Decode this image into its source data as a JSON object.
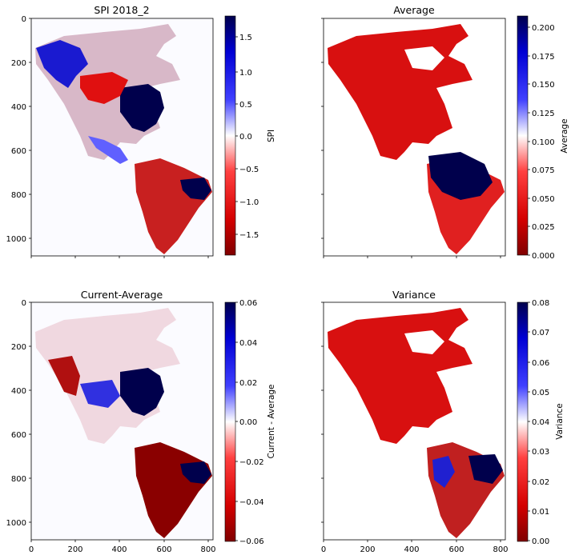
{
  "chart_data": [
    {
      "type": "heatmap",
      "title": "SPI 2018_2",
      "xlabel": "",
      "ylabel": "",
      "xlim": [
        0,
        820
      ],
      "ylim": [
        1080,
        0
      ],
      "xticks": [],
      "yticks": [
        0,
        200,
        400,
        600,
        800,
        1000
      ],
      "colormap": "seismic_r",
      "colorbar": {
        "label": "SPI",
        "range": [
          -1.85,
          1.85
        ],
        "ticks": [
          -1.5,
          -1.0,
          -0.5,
          0.0,
          0.5,
          1.0,
          1.5
        ],
        "tick_labels": [
          "−1.5",
          "−1.0",
          "−0.5",
          "0.0",
          "0.5",
          "1.0",
          "1.5"
        ]
      }
    },
    {
      "type": "heatmap",
      "title": "Average",
      "xlabel": "",
      "ylabel": "",
      "xlim": [
        0,
        820
      ],
      "ylim": [
        1080,
        0
      ],
      "xticks": [],
      "yticks": [],
      "colormap": "seismic_r",
      "colorbar": {
        "label": "Average",
        "range": [
          0.0,
          0.21
        ],
        "ticks": [
          0.0,
          0.025,
          0.05,
          0.075,
          0.1,
          0.125,
          0.15,
          0.175,
          0.2
        ],
        "tick_labels": [
          "0.000",
          "0.025",
          "0.050",
          "0.075",
          "0.100",
          "0.125",
          "0.150",
          "0.175",
          "0.200"
        ]
      }
    },
    {
      "type": "heatmap",
      "title": "Current-Average",
      "xlabel": "",
      "ylabel": "",
      "xlim": [
        0,
        820
      ],
      "ylim": [
        1080,
        0
      ],
      "xticks": [
        0,
        200,
        400,
        600,
        800
      ],
      "yticks": [
        0,
        200,
        400,
        600,
        800,
        1000
      ],
      "colormap": "seismic_r",
      "colorbar": {
        "label": "Current - Average",
        "range": [
          -0.06,
          0.06
        ],
        "ticks": [
          -0.06,
          -0.04,
          -0.02,
          0.0,
          0.02,
          0.04,
          0.06
        ],
        "tick_labels": [
          "−0.06",
          "−0.04",
          "−0.02",
          "0.00",
          "0.02",
          "0.04",
          "0.06"
        ]
      }
    },
    {
      "type": "heatmap",
      "title": "Variance",
      "xlabel": "",
      "ylabel": "",
      "xlim": [
        0,
        820
      ],
      "ylim": [
        1080,
        0
      ],
      "xticks": [
        0,
        200,
        400,
        600,
        800
      ],
      "yticks": [],
      "colormap": "seismic_r",
      "colorbar": {
        "label": "Variance",
        "range": [
          0.0,
          0.08
        ],
        "ticks": [
          0.0,
          0.01,
          0.02,
          0.03,
          0.04,
          0.05,
          0.06,
          0.07,
          0.08
        ],
        "tick_labels": [
          "0.00",
          "0.01",
          "0.02",
          "0.03",
          "0.04",
          "0.05",
          "0.06",
          "0.07",
          "0.08"
        ]
      }
    }
  ],
  "colors": {
    "cmap_low": "#7f0000",
    "cmap_mid": "#ffffff",
    "cmap_high": "#00004c",
    "background_value": "#fbfbff"
  }
}
